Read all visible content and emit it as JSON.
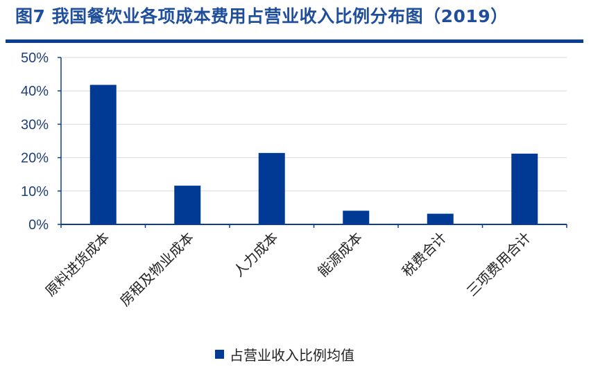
{
  "header": {
    "title": "图7  我国餐饮业各项成本费用占营业收入比例分布图（2019）"
  },
  "colors": {
    "bar": "#003a94",
    "title": "#1f4e9c",
    "rule": "#0b3d91",
    "grid": "#d9d9d9",
    "axis": "#0b3d91"
  },
  "chart_data": {
    "type": "bar",
    "title": "",
    "xlabel": "",
    "ylabel": "",
    "categories": [
      "原料进货成本",
      "房租及物业成本",
      "人力成本",
      "能源成本",
      "税费合计",
      "三项费用合计"
    ],
    "series": [
      {
        "name": "占营业收入比例均值",
        "values": [
          41.8,
          11.6,
          21.4,
          4.1,
          3.2,
          21.2
        ]
      }
    ],
    "ylim": [
      0,
      50
    ],
    "yticks": [
      0,
      10,
      20,
      30,
      40,
      50
    ],
    "ytick_labels": [
      "0%",
      "10%",
      "20%",
      "30%",
      "40%",
      "50%"
    ],
    "grid": true,
    "legend_position": "bottom"
  }
}
